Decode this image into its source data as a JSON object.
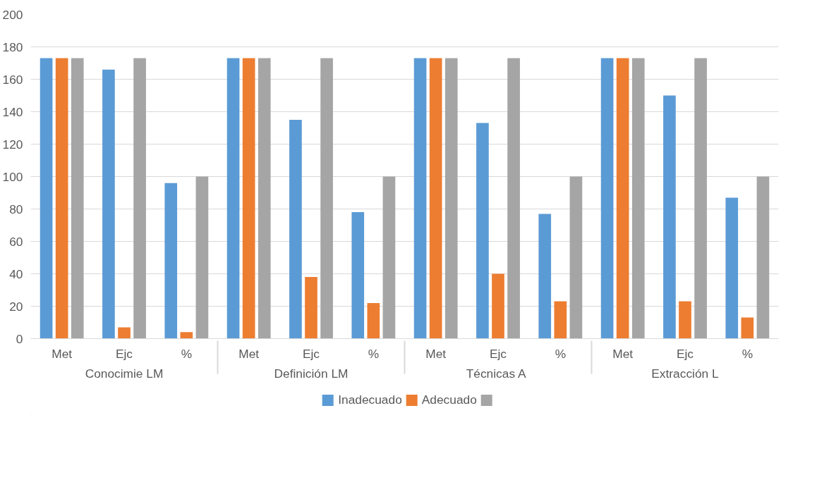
{
  "chart_data": {
    "type": "bar",
    "categories": [
      "Met",
      "Ejc",
      "%",
      "Met",
      "Ejc",
      "%",
      "Met",
      "Ejc",
      "%",
      "Met",
      "Ejc",
      "%"
    ],
    "annotations": [
      "Conocimie LM",
      "Definición LM",
      "Técnicas  A",
      "Extracción L"
    ],
    "series": [
      {
        "name": "Inadecuado",
        "color": "#5b9bd5",
        "values": [
          173,
          166,
          96,
          173,
          135,
          78,
          173,
          133,
          77,
          173,
          150,
          87
        ]
      },
      {
        "name": "Adecuado",
        "color": "#ed7d31",
        "values": [
          173,
          7,
          4,
          173,
          38,
          22,
          173,
          40,
          23,
          173,
          23,
          13
        ]
      },
      {
        "color": "#a5a5a5",
        "values": [
          173,
          173,
          100,
          173,
          173,
          100,
          173,
          173,
          100,
          173,
          173,
          100
        ]
      }
    ],
    "ylim": [
      0,
      200
    ],
    "yticks": [
      0,
      20,
      40,
      60,
      80,
      100,
      120,
      140,
      160,
      180,
      200
    ],
    "grid": "y",
    "legend": "bottom"
  }
}
